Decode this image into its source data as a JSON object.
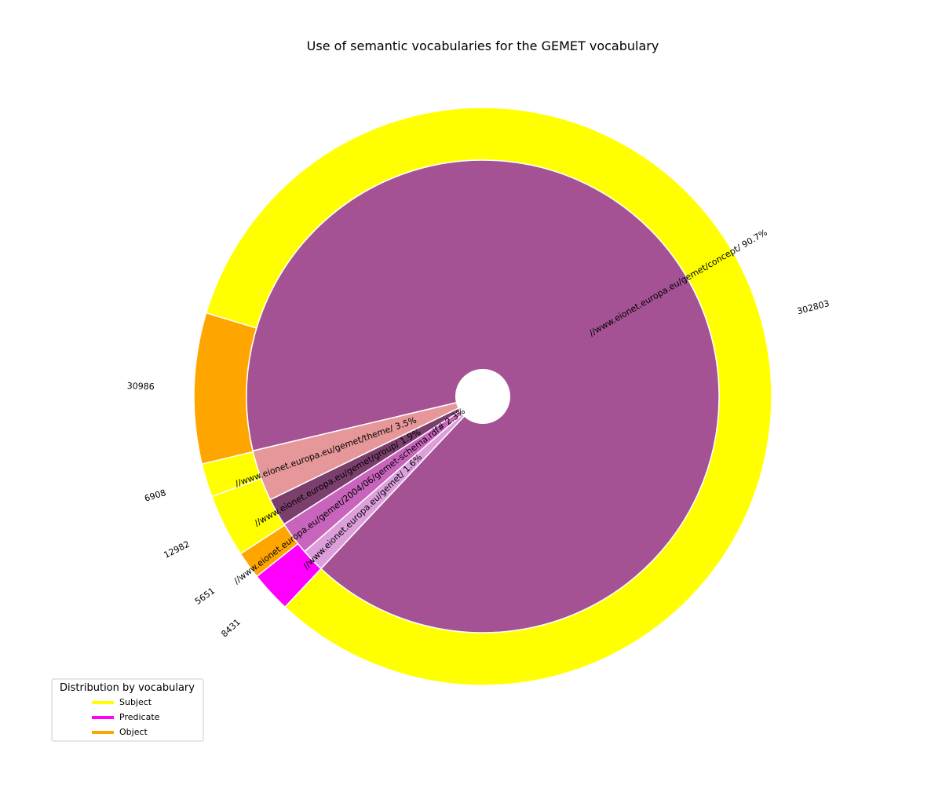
{
  "chart_data": {
    "type": "pie",
    "title": "Use of semantic vocabularies for the GEMET vocabulary",
    "inner_ring": {
      "slices": [
        {
          "label": "//www.eionet.europa.eu/gemet/concept/",
          "percent_label": "90.7%",
          "value": 90.7,
          "color": "#a45294"
        },
        {
          "label": "//www.eionet.europa.eu/gemet/theme/",
          "percent_label": "3.5%",
          "value": 3.5,
          "color": "#e69799"
        },
        {
          "label": "//www.eionet.europa.eu/gemet/group/",
          "percent_label": "1.9%",
          "value": 1.9,
          "color": "#7b3f6e"
        },
        {
          "label": "//www.eionet.europa.eu/gemet/2004/06/gemet-schema.rdf#",
          "percent_label": "2.3%",
          "value": 2.3,
          "color": "#c964bd"
        },
        {
          "label": "//www.eionet.europa.eu/gemet/",
          "percent_label": "1.6%",
          "value": 1.6,
          "color": "#dd9fdc"
        }
      ]
    },
    "outer_ring": {
      "slices": [
        {
          "role": "Subject",
          "value": 302803,
          "count_label": "302803",
          "color": "#ffff00"
        },
        {
          "role": "Object",
          "value": 30986,
          "count_label": "30986",
          "color": "#ffa500"
        },
        {
          "role": "Subject",
          "value": 6908,
          "count_label": "6908",
          "color": "#ffff00"
        },
        {
          "role": "Subject",
          "value": 12982,
          "count_label": "12982",
          "color": "#ffff00"
        },
        {
          "role": "Object",
          "value": 5651,
          "count_label": "5651",
          "color": "#ffa500"
        },
        {
          "role": "Predicate",
          "value": 8431,
          "count_label": "8431",
          "color": "#ff00ff"
        }
      ]
    },
    "legend": {
      "title": "Distribution by vocabulary",
      "placement": "lower-left",
      "entries": [
        {
          "label": "Subject",
          "color": "#ffff00"
        },
        {
          "label": "Predicate",
          "color": "#ff00ff"
        },
        {
          "label": "Object",
          "color": "#ffa500"
        }
      ]
    }
  }
}
